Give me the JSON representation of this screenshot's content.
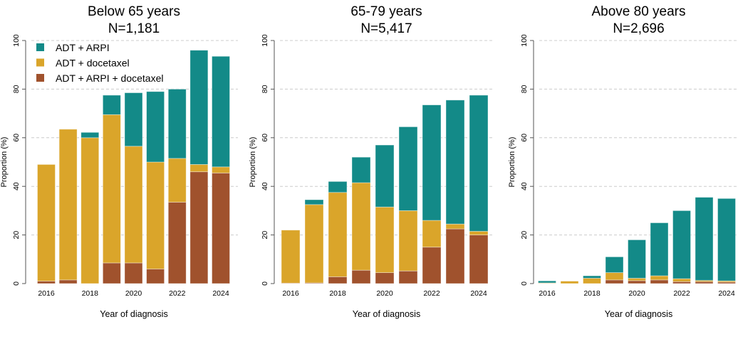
{
  "colors": {
    "arpi": "#138a88",
    "docetaxel": "#daa52a",
    "triple": "#a0522d"
  },
  "legend": {
    "placement": "top-left of first panel",
    "items": [
      {
        "label": "ADT + ARPI",
        "key": "arpi"
      },
      {
        "label": "ADT + docetaxel",
        "key": "docetaxel"
      },
      {
        "label": "ADT + ARPI + docetaxel",
        "key": "triple"
      }
    ]
  },
  "chart_data": [
    {
      "type": "bar",
      "stacked": true,
      "title": "Below 65 years",
      "subtitle": "N=1,181",
      "xlabel": "Year of diagnosis",
      "ylabel": "Proportion (%)",
      "ylim": [
        0,
        100
      ],
      "yticks": [
        0,
        20,
        40,
        60,
        80,
        100
      ],
      "xticks": [
        2016,
        2018,
        2020,
        2022,
        2024
      ],
      "grid": "horizontal dashed",
      "categories": [
        2016,
        2017,
        2018,
        2019,
        2020,
        2021,
        2022,
        2023,
        2024
      ],
      "series": [
        {
          "name": "ADT + ARPI + docetaxel",
          "key": "triple",
          "values": [
            1,
            1.5,
            0,
            8.5,
            8.5,
            6,
            33.5,
            46,
            45.5
          ]
        },
        {
          "name": "ADT + docetaxel",
          "key": "docetaxel",
          "values": [
            48,
            62,
            60,
            61,
            48,
            44,
            18,
            3,
            2.5
          ]
        },
        {
          "name": "ADT + ARPI",
          "key": "arpi",
          "values": [
            0,
            0,
            2.2,
            8,
            22,
            29,
            28.5,
            47,
            45.5
          ]
        }
      ]
    },
    {
      "type": "bar",
      "stacked": true,
      "title": "65-79 years",
      "subtitle": "N=5,417",
      "xlabel": "Year of diagnosis",
      "ylabel": "Proportion (%)",
      "ylim": [
        0,
        100
      ],
      "yticks": [
        0,
        20,
        40,
        60,
        80,
        100
      ],
      "xticks": [
        2016,
        2018,
        2020,
        2022,
        2024
      ],
      "grid": "horizontal dashed",
      "categories": [
        2016,
        2017,
        2018,
        2019,
        2020,
        2021,
        2022,
        2023,
        2024
      ],
      "series": [
        {
          "name": "ADT + ARPI + docetaxel",
          "key": "triple",
          "values": [
            0.2,
            0.3,
            2.8,
            5.5,
            4.5,
            5.2,
            15,
            22.5,
            20
          ]
        },
        {
          "name": "ADT + docetaxel",
          "key": "docetaxel",
          "values": [
            21.8,
            32.2,
            34.7,
            36,
            27,
            24.8,
            11,
            2,
            1.5
          ]
        },
        {
          "name": "ADT + ARPI",
          "key": "arpi",
          "values": [
            0,
            2,
            4.5,
            10.5,
            25.5,
            34.5,
            47.5,
            51,
            56
          ]
        }
      ]
    },
    {
      "type": "bar",
      "stacked": true,
      "title": "Above 80 years",
      "subtitle": "N=2,696",
      "xlabel": "Year of diagnosis",
      "ylabel": "Proportion (%)",
      "ylim": [
        0,
        100
      ],
      "yticks": [
        0,
        20,
        40,
        60,
        80,
        100
      ],
      "xticks": [
        2016,
        2018,
        2020,
        2022,
        2024
      ],
      "grid": "horizontal dashed",
      "categories": [
        2016,
        2017,
        2018,
        2019,
        2020,
        2021,
        2022,
        2023,
        2024
      ],
      "series": [
        {
          "name": "ADT + ARPI + docetaxel",
          "key": "triple",
          "values": [
            0.1,
            0,
            0,
            1.5,
            1.2,
            1.5,
            0.8,
            0.8,
            0.6
          ]
        },
        {
          "name": "ADT + docetaxel",
          "key": "docetaxel",
          "values": [
            0.2,
            1,
            2.2,
            3,
            1,
            1.7,
            1.2,
            0.5,
            0.5
          ]
        },
        {
          "name": "ADT + ARPI",
          "key": "arpi",
          "values": [
            0.8,
            0,
            1,
            6.5,
            15.8,
            21.8,
            28,
            34.2,
            33.9
          ]
        }
      ]
    }
  ]
}
